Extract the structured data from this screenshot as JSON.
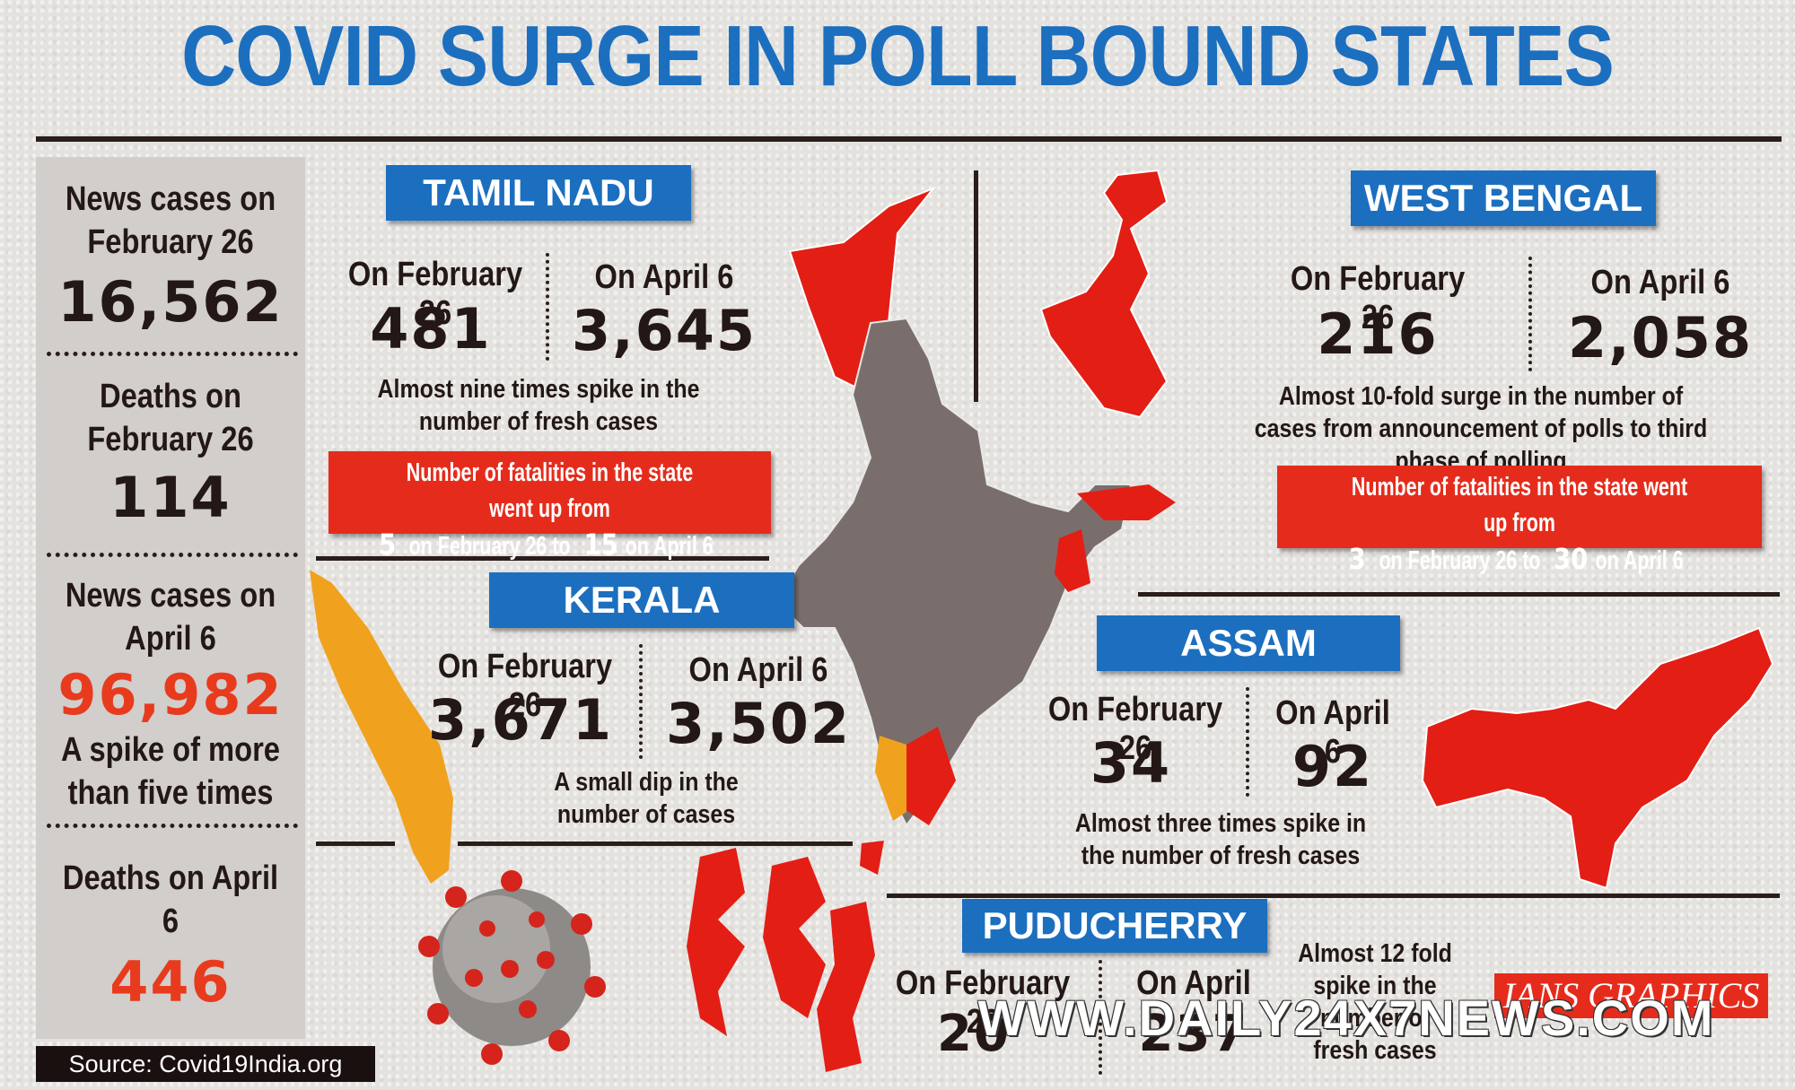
{
  "title": "COVID SURGE IN POLL BOUND STATES",
  "sidebar": {
    "cases_feb_label": "News cases on February 26",
    "cases_feb_value": "16,562",
    "deaths_feb_label": "Deaths on February 26",
    "deaths_feb_value": "114",
    "cases_apr_label": "News cases on April 6",
    "cases_apr_value": "96,982",
    "spike_note": "A spike of more than five times",
    "deaths_apr_label": "Deaths on April 6",
    "deaths_apr_value": "446"
  },
  "date_labels": {
    "feb": "On February 26",
    "apr": "On April 6"
  },
  "tamil_nadu": {
    "name": "TAMIL NADU",
    "feb": "481",
    "apr": "3,645",
    "note": "Almost nine times spike in the number of fresh cases",
    "fatal_prefix": "Number of fatalities in the state went up from ",
    "fatal_from": "5",
    "fatal_mid": " on February 26 to ",
    "fatal_to": "15",
    "fatal_suffix": " on April 6"
  },
  "west_bengal": {
    "name": "WEST BENGAL",
    "feb": "216",
    "apr": "2,058",
    "note": "Almost 10-fold surge in the number of cases from announcement of polls to third phase of polling",
    "fatal_prefix": "Number of fatalities in the state went up from ",
    "fatal_from": "3",
    "fatal_mid": " on February 26 to ",
    "fatal_to": "30",
    "fatal_suffix": " on April 6"
  },
  "kerala": {
    "name": "KERALA",
    "feb": "3,671",
    "apr": "3,502",
    "note": "A small dip in the number of cases"
  },
  "assam": {
    "name": "ASSAM",
    "feb": "34",
    "apr": "92",
    "note": "Almost three times spike in the number of fresh cases"
  },
  "puducherry": {
    "name": "PUDUCHERRY",
    "feb": "20",
    "apr": "237",
    "note": "Almost 12 fold spike in the number of fresh cases"
  },
  "source": "Source: Covid19India.org",
  "credit": "IANS GRAPHICS",
  "watermark": "WWW.DAILY24X7NEWS.COM",
  "colors": {
    "accent_blue": "#1c6fbf",
    "highlight_red": "#e52c1c",
    "map_grey": "#7a6e6c",
    "kerala_orange": "#f0a21e"
  }
}
